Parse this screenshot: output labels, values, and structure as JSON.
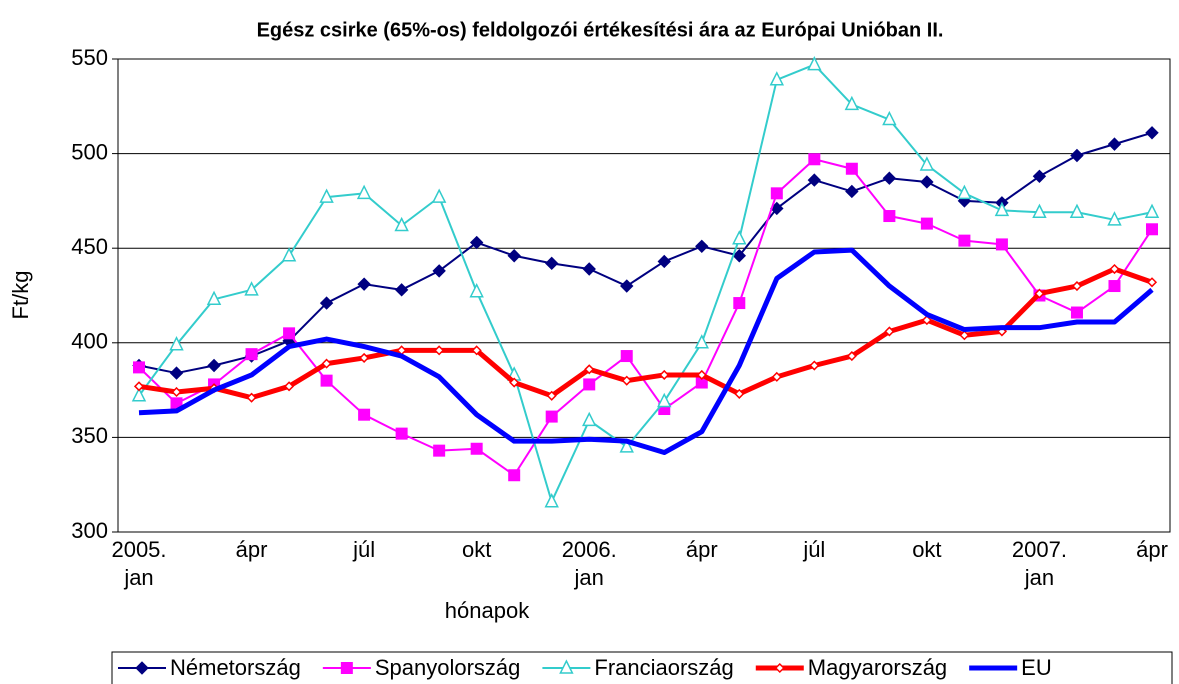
{
  "chart_data": {
    "type": "line",
    "title": "Egész csirke (65%-os) feldolgozói értékesítési ára az Európai Unióban II.",
    "ylabel": "Ft/kg",
    "xlabel": "hónapok",
    "categories": [
      "2005.\njan",
      null,
      null,
      "ápr",
      null,
      null,
      "júl",
      null,
      null,
      "okt",
      null,
      null,
      "2006.\njan",
      null,
      null,
      "ápr",
      null,
      null,
      "júl",
      null,
      null,
      "okt",
      null,
      null,
      "2007.\njan",
      null,
      null,
      "ápr"
    ],
    "ylim": [
      300,
      550
    ],
    "yticks": [
      300,
      350,
      400,
      450,
      500,
      550
    ],
    "grid": true,
    "legend": "bottom",
    "series": [
      {
        "name": "Németország",
        "color": "#000080",
        "marker": "diamond",
        "values": [
          388,
          384,
          388,
          393,
          401,
          421,
          431,
          428,
          438,
          453,
          446,
          442,
          439,
          430,
          443,
          451,
          446,
          471,
          486,
          480,
          487,
          485,
          475,
          474,
          488,
          499,
          505,
          511
        ]
      },
      {
        "name": "Spanyolország",
        "color": "#ff00ff",
        "marker": "square",
        "values": [
          387,
          368,
          378,
          394,
          405,
          380,
          362,
          352,
          343,
          344,
          330,
          361,
          378,
          393,
          365,
          379,
          421,
          479,
          497,
          492,
          467,
          463,
          454,
          452,
          425,
          416,
          430,
          460
        ]
      },
      {
        "name": "Franciaország",
        "color": "#33cccc",
        "marker": "triangle",
        "values": [
          372,
          399,
          423,
          428,
          446,
          477,
          479,
          462,
          477,
          427,
          383,
          316,
          359,
          345,
          369,
          400,
          455,
          539,
          547,
          526,
          518,
          494,
          479,
          470,
          469,
          469,
          465,
          469
        ]
      },
      {
        "name": "Magyarország",
        "color": "#ff0000",
        "marker": "smalldiamond",
        "values": [
          377,
          374,
          376,
          371,
          377,
          389,
          392,
          396,
          396,
          396,
          379,
          372,
          386,
          380,
          383,
          383,
          373,
          382,
          388,
          393,
          406,
          412,
          404,
          406,
          426,
          430,
          439,
          432
        ]
      },
      {
        "name": "EU",
        "color": "#0000ff",
        "marker": "none",
        "values": [
          363,
          364,
          375,
          383,
          398,
          402,
          398,
          393,
          382,
          362,
          348,
          348,
          349,
          348,
          342,
          353,
          388,
          434,
          448,
          449,
          430,
          415,
          407,
          408,
          408,
          411,
          411,
          428
        ]
      }
    ]
  }
}
